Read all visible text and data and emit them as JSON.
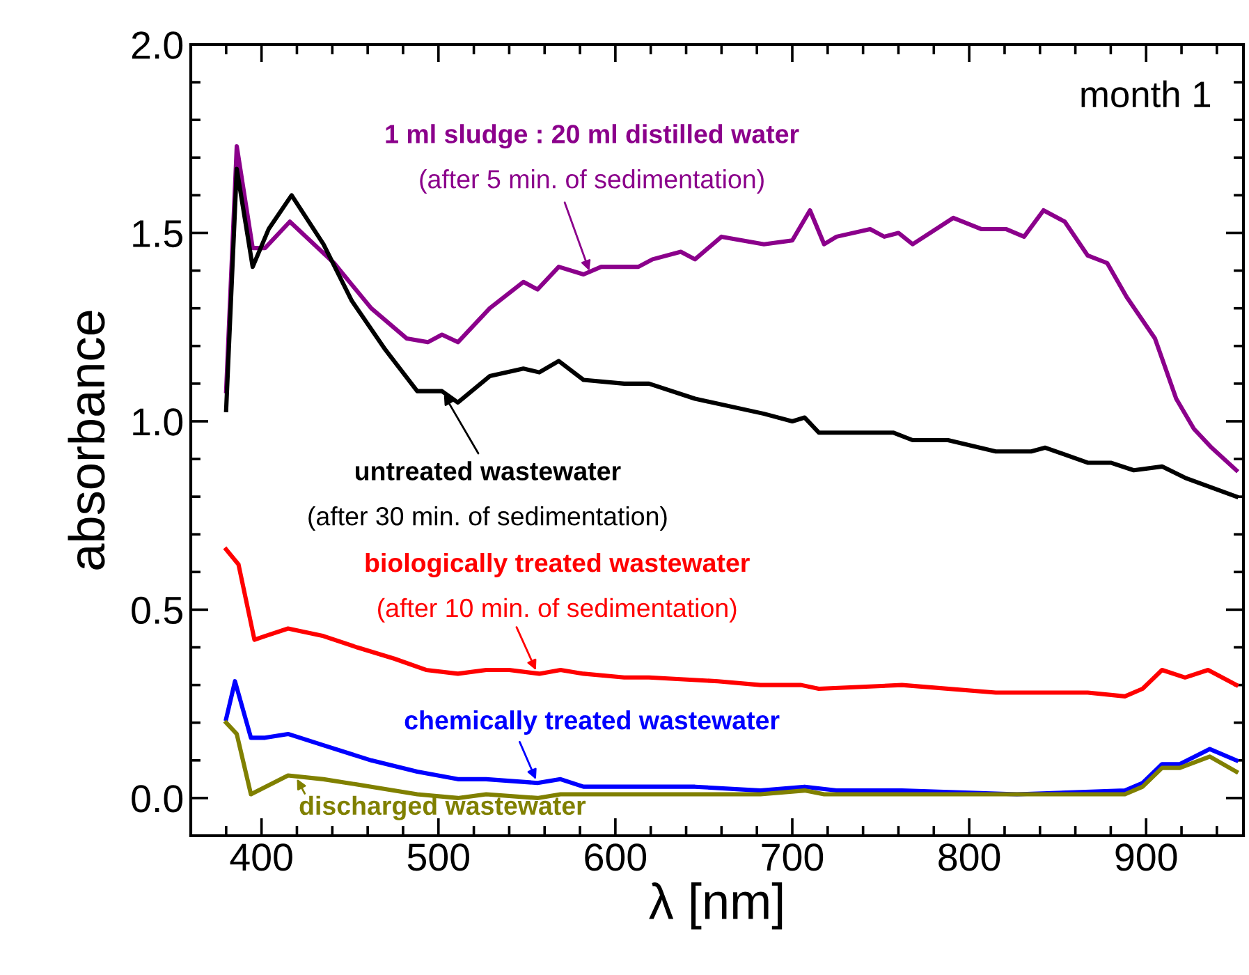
{
  "chart_data": {
    "type": "line",
    "xlabel": "λ [nm]",
    "ylabel": "absorbance",
    "xlim": [
      360,
      955
    ],
    "ylim": [
      -0.1,
      2.0
    ],
    "xticks": [
      400,
      500,
      600,
      700,
      800,
      900
    ],
    "yticks": [
      {
        "value": 0.0,
        "label": "0.0"
      },
      {
        "value": 0.5,
        "label": "0.5"
      },
      {
        "value": 1.0,
        "label": "1.0"
      },
      {
        "value": 1.5,
        "label": "1.5"
      },
      {
        "value": 2.0,
        "label": "2.0"
      }
    ],
    "grid": false,
    "line_style": "solid",
    "marker": "none",
    "series": [
      {
        "color": "#8b008b",
        "x": [
          380,
          386,
          395,
          402,
          416,
          441,
          462,
          482,
          494,
          502,
          511,
          529,
          548,
          556,
          568,
          582,
          592,
          613,
          621,
          637,
          645,
          660,
          684,
          700,
          710,
          718,
          725,
          744,
          752,
          760,
          768,
          791,
          807,
          821,
          831,
          842,
          854,
          867,
          878,
          889,
          905,
          917,
          927,
          937,
          951
        ],
        "values": [
          1.08,
          1.73,
          1.46,
          1.46,
          1.53,
          1.42,
          1.3,
          1.22,
          1.21,
          1.23,
          1.21,
          1.3,
          1.37,
          1.35,
          1.41,
          1.39,
          1.41,
          1.41,
          1.43,
          1.45,
          1.43,
          1.49,
          1.47,
          1.48,
          1.56,
          1.47,
          1.49,
          1.51,
          1.49,
          1.5,
          1.47,
          1.54,
          1.51,
          1.51,
          1.49,
          1.56,
          1.53,
          1.44,
          1.42,
          1.33,
          1.22,
          1.06,
          0.98,
          0.93,
          0.87
        ]
      },
      {
        "color": "#000000",
        "x": [
          380,
          386,
          395,
          404,
          417,
          435,
          451,
          470,
          488,
          502,
          511,
          529,
          548,
          557,
          568,
          582,
          605,
          619,
          645,
          684,
          700,
          707,
          715,
          736,
          757,
          768,
          788,
          815,
          835,
          843,
          867,
          880,
          893,
          909,
          922,
          951
        ],
        "values": [
          1.03,
          1.67,
          1.41,
          1.51,
          1.6,
          1.47,
          1.32,
          1.19,
          1.08,
          1.08,
          1.05,
          1.12,
          1.14,
          1.13,
          1.16,
          1.11,
          1.1,
          1.1,
          1.06,
          1.02,
          1.0,
          1.01,
          0.97,
          0.97,
          0.97,
          0.95,
          0.95,
          0.92,
          0.92,
          0.93,
          0.89,
          0.89,
          0.87,
          0.88,
          0.85,
          0.8
        ]
      },
      {
        "color": "#ff0000",
        "x": [
          380,
          387,
          396,
          402,
          415,
          435,
          454,
          475,
          493,
          511,
          527,
          540,
          557,
          569,
          582,
          605,
          619,
          658,
          682,
          705,
          715,
          762,
          815,
          867,
          888,
          898,
          909,
          922,
          935,
          951
        ],
        "values": [
          0.66,
          0.62,
          0.42,
          0.43,
          0.45,
          0.43,
          0.4,
          0.37,
          0.34,
          0.33,
          0.34,
          0.34,
          0.33,
          0.34,
          0.33,
          0.32,
          0.32,
          0.31,
          0.3,
          0.3,
          0.29,
          0.3,
          0.28,
          0.28,
          0.27,
          0.29,
          0.34,
          0.32,
          0.34,
          0.3
        ]
      },
      {
        "color": "#0000ff",
        "x": [
          380,
          385,
          394,
          402,
          415,
          435,
          462,
          488,
          511,
          527,
          556,
          569,
          582,
          605,
          645,
          682,
          707,
          725,
          762,
          827,
          888,
          898,
          909,
          919,
          936,
          951
        ],
        "values": [
          0.21,
          0.31,
          0.16,
          0.16,
          0.17,
          0.14,
          0.1,
          0.07,
          0.05,
          0.05,
          0.04,
          0.05,
          0.03,
          0.03,
          0.03,
          0.02,
          0.03,
          0.02,
          0.02,
          0.01,
          0.02,
          0.04,
          0.09,
          0.09,
          0.13,
          0.1
        ]
      },
      {
        "color": "#808000",
        "x": [
          380,
          386,
          394,
          415,
          435,
          462,
          488,
          511,
          527,
          556,
          569,
          592,
          682,
          707,
          718,
          762,
          872,
          888,
          898,
          909,
          919,
          936,
          951
        ],
        "values": [
          0.2,
          0.17,
          0.01,
          0.06,
          0.05,
          0.03,
          0.01,
          0.0,
          0.01,
          0.0,
          0.01,
          0.01,
          0.01,
          0.02,
          0.01,
          0.01,
          0.01,
          0.01,
          0.03,
          0.08,
          0.08,
          0.11,
          0.07
        ]
      }
    ],
    "annotations": [
      "month 1",
      "1 ml sludge : 20 ml distilled water",
      {
        "text": "(after 5 min. of sedimentation)",
        "x": 586,
        "y": 1.39
      },
      {
        "text": "untreated wastewater",
        "x": 502,
        "y": 1.08
      },
      "(after 30 min. of sedimentation)",
      "biologically treated wastewater",
      {
        "text": "(after 10 min. of sedimentation)",
        "x": 556,
        "y": 0.33
      },
      {
        "text": "chemically treated wastewater",
        "x": 556,
        "y": 0.04
      },
      {
        "text": "discharged wastewater",
        "x": 419,
        "y": 0.06
      }
    ]
  }
}
